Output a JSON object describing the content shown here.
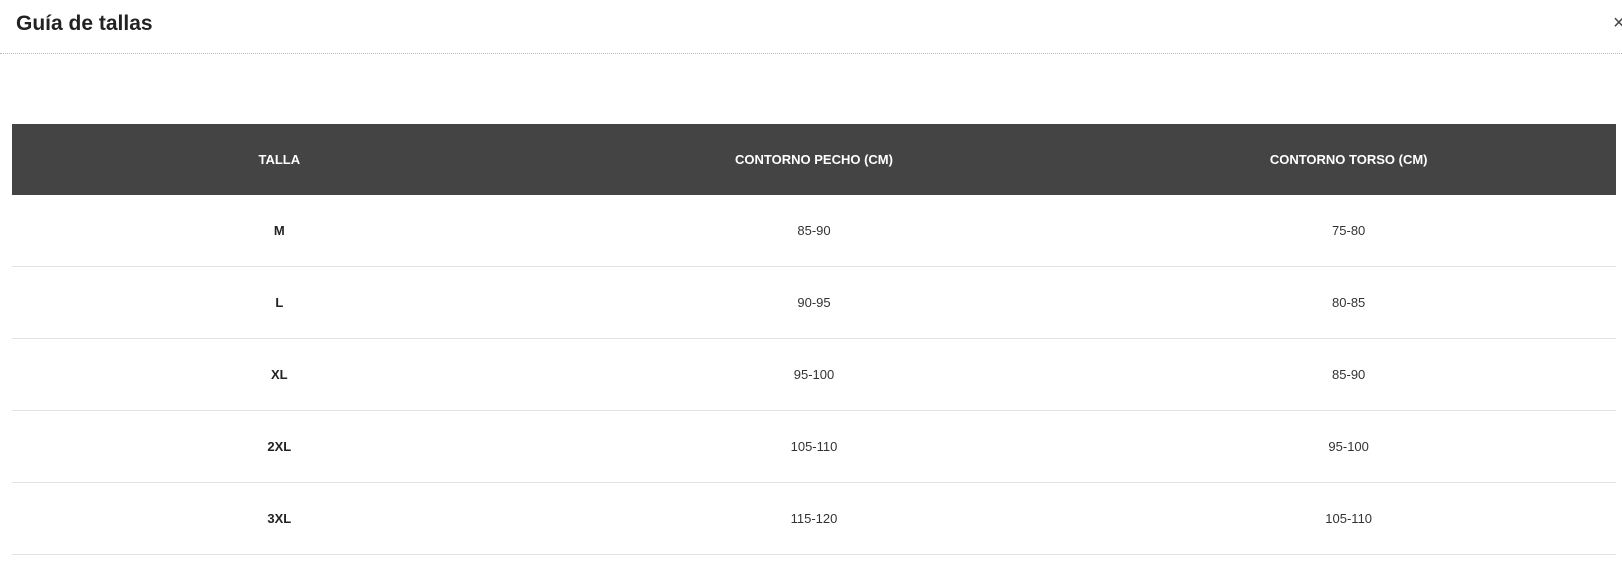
{
  "modal": {
    "title": "Guía de tallas",
    "close_icon": "close-icon"
  },
  "table": {
    "headers": [
      "TALLA",
      "CONTORNO PECHO (CM)",
      "CONTORNO TORSO (CM)"
    ],
    "rows": [
      [
        "M",
        "85-90",
        "75-80"
      ],
      [
        "L",
        "90-95",
        "80-85"
      ],
      [
        "XL",
        "95-100",
        "85-90"
      ],
      [
        "2XL",
        "105-110",
        "95-100"
      ],
      [
        "3XL",
        "115-120",
        "105-110"
      ]
    ],
    "header_bg": "#444444"
  }
}
